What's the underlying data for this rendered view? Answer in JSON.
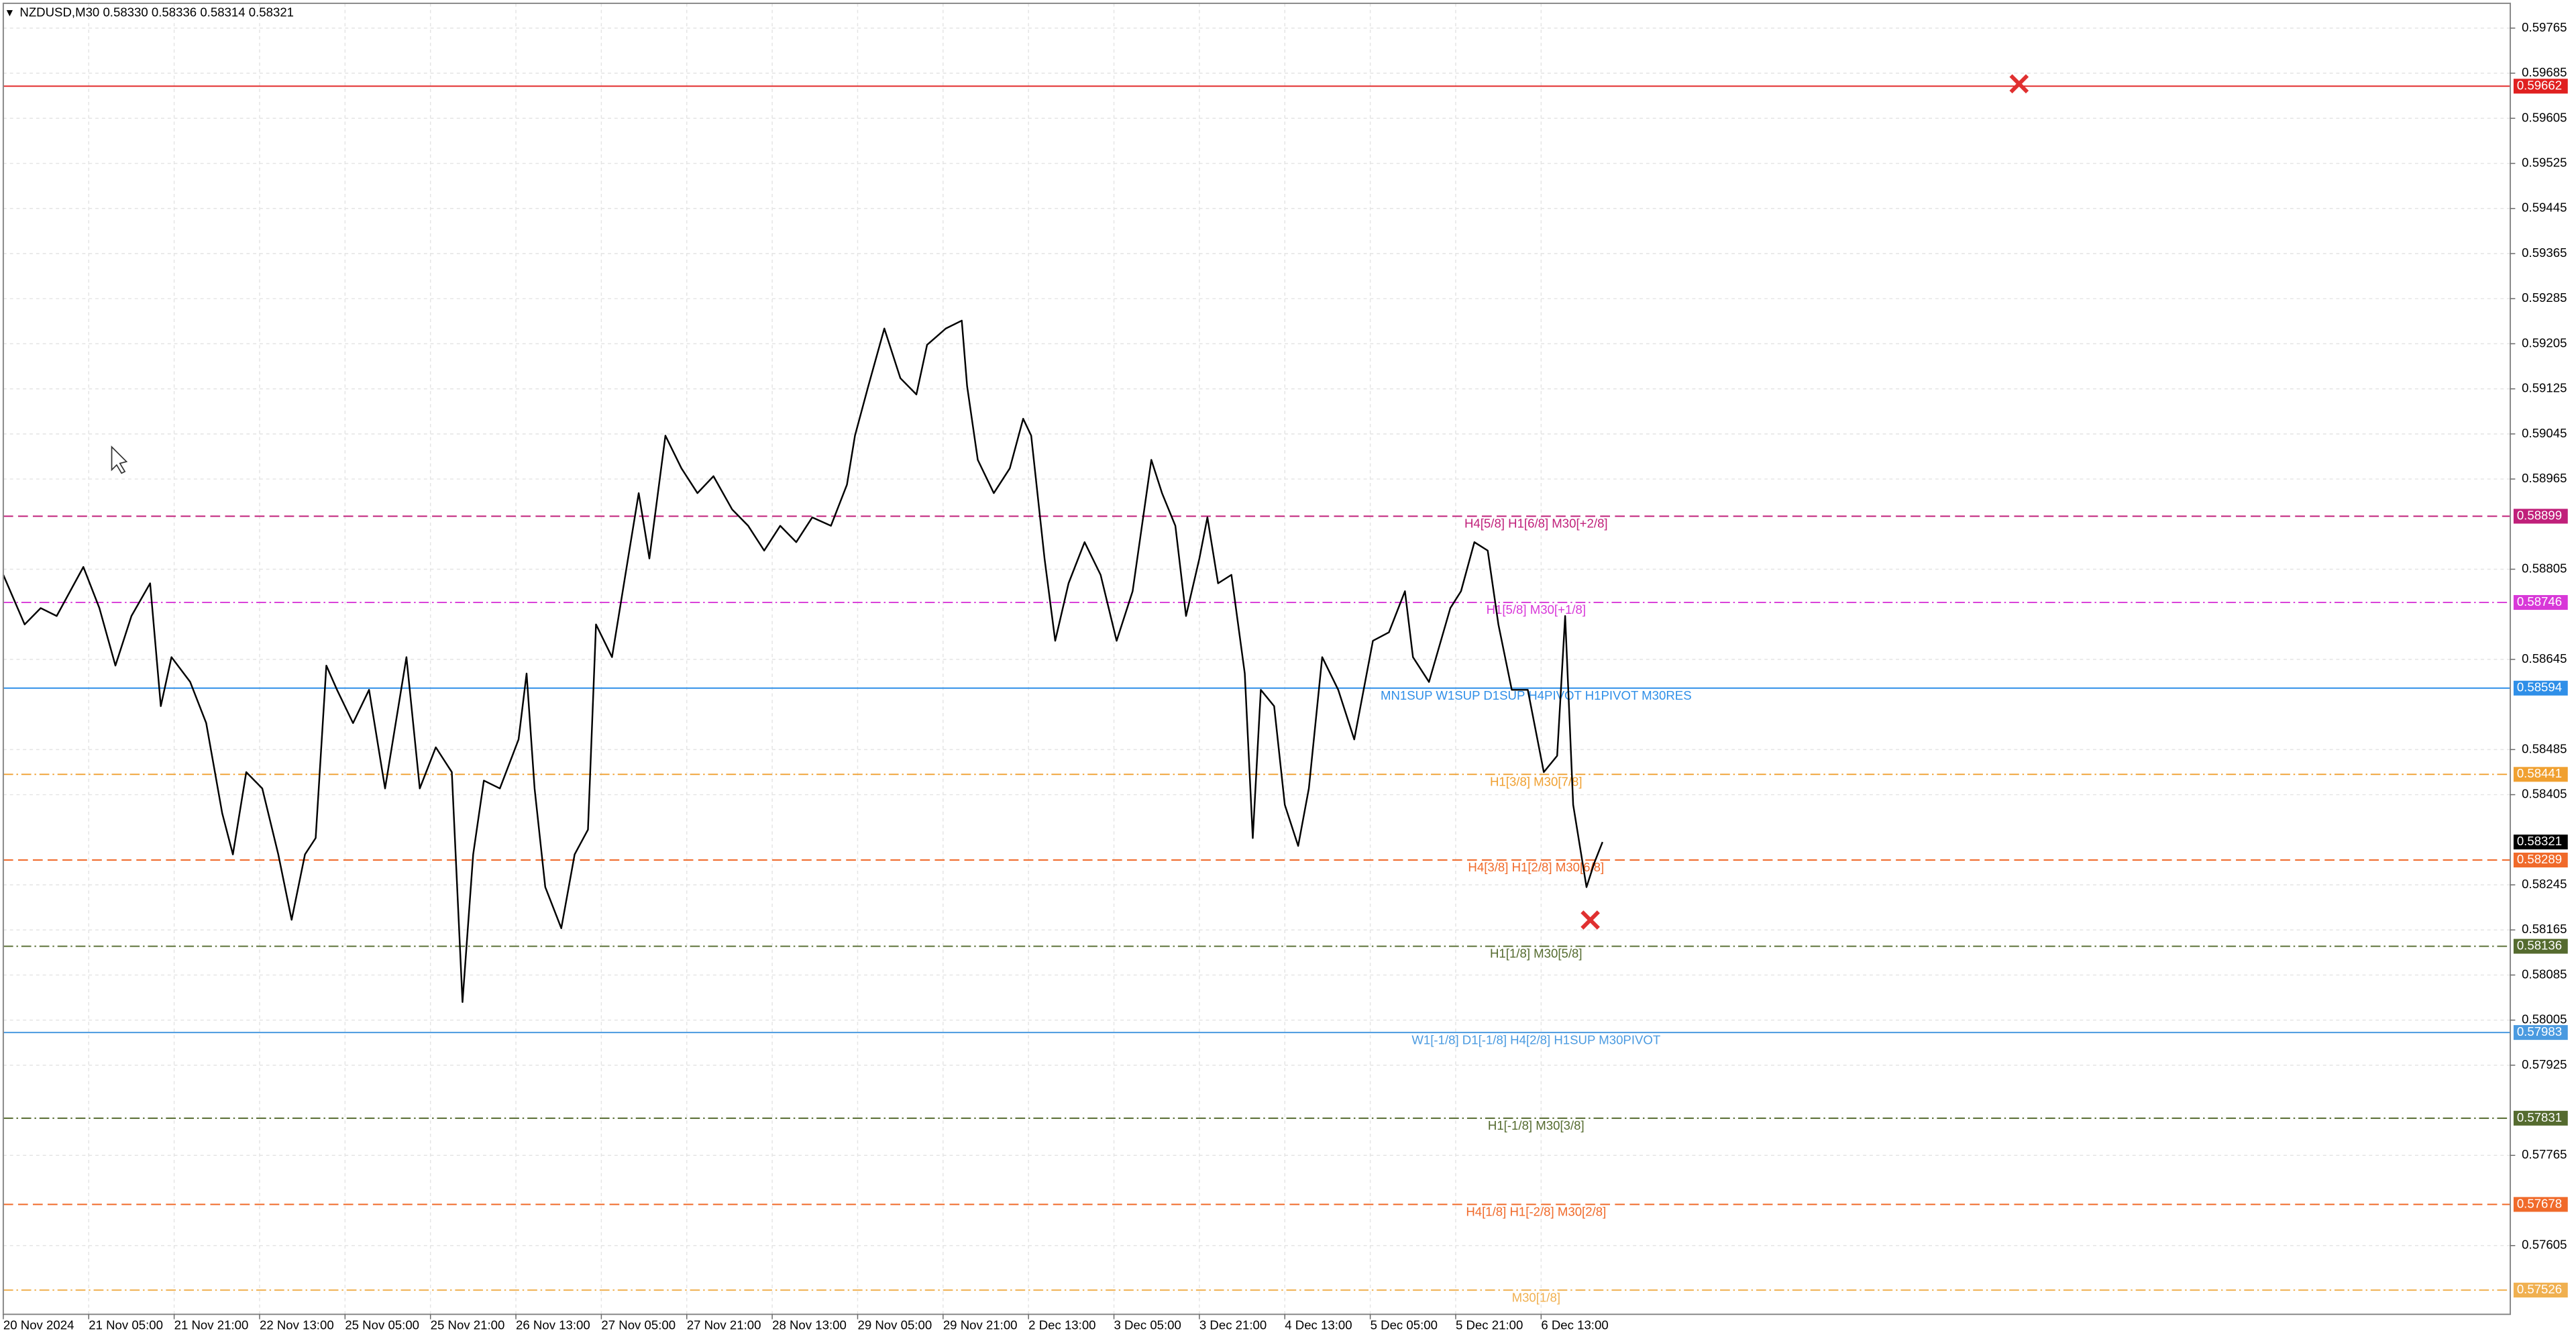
{
  "chart_data": {
    "type": "line",
    "title": "NZDUSD,M30  0.58330 0.58336 0.58314 0.58321",
    "color": "#000000",
    "grid": true,
    "xlim": [
      0,
      939
    ],
    "ylim": [
      0.57483,
      0.59809
    ],
    "xticks": [
      {
        "value": 0,
        "label": "20 Nov 2024"
      },
      {
        "value": 32,
        "label": "21 Nov 05:00"
      },
      {
        "value": 64,
        "label": "21 Nov 21:00"
      },
      {
        "value": 96,
        "label": "22 Nov 13:00"
      },
      {
        "value": 128,
        "label": "25 Nov 05:00"
      },
      {
        "value": 160,
        "label": "25 Nov 21:00"
      },
      {
        "value": 192,
        "label": "26 Nov 13:00"
      },
      {
        "value": 224,
        "label": "27 Nov 05:00"
      },
      {
        "value": 256,
        "label": "27 Nov 21:00"
      },
      {
        "value": 288,
        "label": "28 Nov 13:00"
      },
      {
        "value": 320,
        "label": "29 Nov 05:00"
      },
      {
        "value": 352,
        "label": "29 Nov 21:00"
      },
      {
        "value": 384,
        "label": "2 Dec 13:00"
      },
      {
        "value": 416,
        "label": "3 Dec 05:00"
      },
      {
        "value": 448,
        "label": "3 Dec 21:00"
      },
      {
        "value": 480,
        "label": "4 Dec 13:00"
      },
      {
        "value": 512,
        "label": "5 Dec 05:00"
      },
      {
        "value": 544,
        "label": "5 Dec 21:00"
      },
      {
        "value": 576,
        "label": "6 Dec 13:00"
      }
    ],
    "yticks": [
      0.59765,
      0.59685,
      0.59605,
      0.59525,
      0.59445,
      0.59365,
      0.59285,
      0.59205,
      0.59125,
      0.59045,
      0.58965,
      0.58805,
      0.58645,
      0.58485,
      0.58405,
      0.58245,
      0.58165,
      0.58085,
      0.58005,
      0.57925,
      0.57765,
      0.57605
    ],
    "x": [
      0,
      8,
      14,
      20,
      30,
      36,
      42,
      48,
      55,
      59,
      63,
      70,
      76,
      82,
      86,
      91,
      97,
      103,
      108,
      113,
      117,
      121,
      125,
      131,
      137,
      143,
      151,
      156,
      162,
      168,
      172,
      176,
      180,
      186,
      193,
      196,
      199,
      203,
      209,
      214,
      219,
      222,
      228,
      233,
      238,
      242,
      248,
      254,
      260,
      266,
      273,
      279,
      285,
      291,
      297,
      303,
      310,
      316,
      319,
      324,
      330,
      336,
      342,
      346,
      353,
      359,
      361,
      365,
      371,
      377,
      382,
      385,
      390,
      394,
      399,
      405,
      411,
      417,
      423,
      430,
      434,
      439,
      443,
      448,
      451,
      455,
      460,
      465,
      468,
      471,
      476,
      480,
      485,
      489,
      494,
      500,
      506,
      513,
      519,
      525,
      528,
      534,
      542,
      546,
      551,
      556,
      560,
      565,
      571,
      577,
      582,
      585,
      588,
      593,
      596,
      599
    ],
    "values": [
      0.58795,
      0.58707,
      0.58736,
      0.58722,
      0.58809,
      0.58736,
      0.58634,
      0.58722,
      0.5878,
      0.58562,
      0.58649,
      0.58605,
      0.58532,
      0.58372,
      0.58299,
      0.58445,
      0.58416,
      0.58299,
      0.58183,
      0.58299,
      0.58328,
      0.58634,
      0.58591,
      0.58532,
      0.58591,
      0.58416,
      0.58649,
      0.58416,
      0.58489,
      0.58445,
      0.58037,
      0.58299,
      0.5843,
      0.58416,
      0.58503,
      0.5862,
      0.58416,
      0.58241,
      0.58168,
      0.58299,
      0.58343,
      0.58707,
      0.58649,
      0.58795,
      0.5894,
      0.58824,
      0.59042,
      0.58984,
      0.5894,
      0.5897,
      0.58911,
      0.58882,
      0.58838,
      0.58882,
      0.58853,
      0.58897,
      0.58882,
      0.58955,
      0.59042,
      0.5913,
      0.59232,
      0.59144,
      0.59115,
      0.59203,
      0.59232,
      0.59246,
      0.5913,
      0.58999,
      0.5894,
      0.58984,
      0.59072,
      0.59042,
      0.58824,
      0.58678,
      0.5878,
      0.58853,
      0.58795,
      0.58678,
      0.58766,
      0.58999,
      0.5894,
      0.58882,
      0.58722,
      0.58824,
      0.58897,
      0.5878,
      0.58795,
      0.5862,
      0.58328,
      0.58591,
      0.58562,
      0.58387,
      0.58314,
      0.58416,
      0.58649,
      0.58591,
      0.58503,
      0.58678,
      0.58693,
      0.58766,
      0.58649,
      0.58605,
      0.58736,
      0.58766,
      0.58853,
      0.58838,
      0.58707,
      0.58591,
      0.58591,
      0.58445,
      0.58474,
      0.58722,
      0.58387,
      0.58241,
      0.58285,
      0.58321
    ],
    "bid": 0.58321,
    "levels": [
      {
        "price": 0.59662,
        "color": "#e02020",
        "style": "solid"
      },
      {
        "price": 0.58899,
        "label": "H4[5/8] H1[6/8] M30[+2/8]",
        "color": "#c0207a",
        "style": "dash"
      },
      {
        "price": 0.58746,
        "label": "H1[5/8] M30[+1/8]",
        "color": "#d838d8",
        "style": "dashdot"
      },
      {
        "price": 0.58594,
        "label": "MN1SUP W1SUP D1SUP H4PIVOT H1PIVOT M30RES",
        "color": "#2f8fe8",
        "style": "solid"
      },
      {
        "price": 0.58441,
        "label": "H1[3/8] M30[7/8]",
        "color": "#f0a030",
        "style": "dashdot"
      },
      {
        "price": 0.58289,
        "label": "H4[3/8] H1[2/8] M30[6/8]",
        "color": "#f06a2a",
        "style": "dash"
      },
      {
        "price": 0.58136,
        "label": "H1[1/8] M30[5/8]",
        "color": "#556b2f",
        "style": "dashdot"
      },
      {
        "price": 0.57983,
        "label": "W1[-1/8] D1[-1/8] H4[2/8] H1SUP M30PIVOT",
        "color": "#4a9ae0",
        "style": "solid"
      },
      {
        "price": 0.57831,
        "label": "H1[-1/8] M30[3/8]",
        "color": "#556b2f",
        "style": "dashdot"
      },
      {
        "price": 0.57678,
        "label": "H4[1/8] H1[-2/8] M30[2/8]",
        "color": "#f06a2a",
        "style": "dash"
      },
      {
        "price": 0.57526,
        "label": "M30[1/8]",
        "color": "#f0b050",
        "style": "dashdot"
      }
    ]
  }
}
